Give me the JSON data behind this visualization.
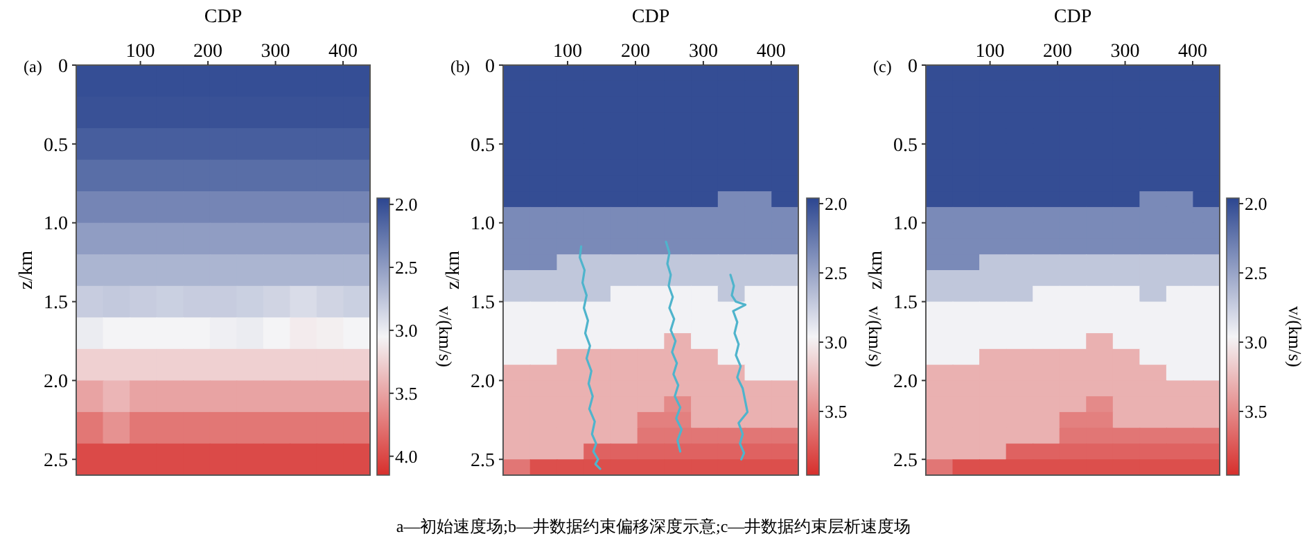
{
  "chart_data": [
    {
      "type": "heatmap",
      "xlabel": "CDP",
      "ylabel": "z/km",
      "clabel": "v/(km/s)",
      "annotations": [
        "(a)",
        "a—初始速度场;b—井数据约束偏移深度示意;c—井数据约束层析速度场"
      ],
      "x": [
        24.8,
        64.3,
        103.9,
        143.4,
        183,
        222.5,
        262,
        301.6,
        341.1,
        380.7,
        420.2
      ],
      "y": [
        0.1,
        0.3,
        0.5,
        0.7,
        0.9,
        1.1,
        1.3,
        1.5,
        1.7,
        1.9,
        2.1,
        2.3,
        2.5
      ],
      "xlim": [
        5,
        440
      ],
      "xticks": [
        100,
        200,
        300,
        400
      ],
      "ylim": [
        2.6,
        0
      ],
      "yticks": [
        {
          "value": 0,
          "label": "0"
        },
        {
          "value": 0.5,
          "label": "0.5"
        },
        {
          "value": 1,
          "label": "1.0"
        },
        {
          "value": 1.5,
          "label": "1.5"
        },
        {
          "value": 2,
          "label": "2.0"
        },
        {
          "value": 2.5,
          "label": "2.5"
        }
      ],
      "clim": [
        1.95,
        4.15
      ],
      "cticks": [
        {
          "value": 2,
          "label": "2.0"
        },
        {
          "value": 2.5,
          "label": "2.5"
        },
        {
          "value": 3,
          "label": "3.0"
        },
        {
          "value": 3.5,
          "label": "3.5"
        },
        {
          "value": 4,
          "label": "4.0"
        }
      ],
      "cells": [
        [
          2.0,
          2.0,
          2.0,
          2.0,
          2.0,
          2.0,
          2.0,
          2.0,
          2.0,
          2.0,
          2.0
        ],
        [
          2.02,
          2.02,
          2.02,
          2.02,
          2.02,
          2.02,
          2.02,
          2.02,
          2.02,
          2.02,
          2.02
        ],
        [
          2.1,
          2.1,
          2.1,
          2.1,
          2.1,
          2.1,
          2.1,
          2.1,
          2.1,
          2.1,
          2.1
        ],
        [
          2.2,
          2.2,
          2.2,
          2.2,
          2.2,
          2.2,
          2.2,
          2.2,
          2.2,
          2.2,
          2.2
        ],
        [
          2.35,
          2.35,
          2.35,
          2.35,
          2.35,
          2.35,
          2.35,
          2.35,
          2.35,
          2.35,
          2.35
        ],
        [
          2.5,
          2.5,
          2.5,
          2.5,
          2.5,
          2.5,
          2.5,
          2.5,
          2.5,
          2.5,
          2.5
        ],
        [
          2.65,
          2.65,
          2.65,
          2.65,
          2.65,
          2.65,
          2.65,
          2.65,
          2.65,
          2.65,
          2.65
        ],
        [
          2.8,
          2.78,
          2.8,
          2.82,
          2.8,
          2.8,
          2.82,
          2.85,
          2.9,
          2.85,
          2.82
        ],
        [
          3.0,
          3.05,
          3.05,
          3.05,
          3.05,
          3.02,
          3.0,
          3.05,
          3.1,
          3.08,
          3.05
        ],
        [
          3.25,
          3.25,
          3.25,
          3.25,
          3.25,
          3.25,
          3.25,
          3.25,
          3.25,
          3.25,
          3.25
        ],
        [
          3.5,
          3.4,
          3.5,
          3.5,
          3.5,
          3.5,
          3.5,
          3.5,
          3.5,
          3.5,
          3.5
        ],
        [
          3.75,
          3.6,
          3.75,
          3.75,
          3.75,
          3.75,
          3.75,
          3.75,
          3.75,
          3.75,
          3.75
        ],
        [
          4.0,
          4.0,
          4.0,
          4.0,
          4.0,
          4.0,
          4.0,
          4.0,
          4.0,
          4.0,
          4.0
        ]
      ]
    },
    {
      "type": "heatmap",
      "xlabel": "CDP",
      "ylabel": "z/km",
      "clabel": "v/(km/s)",
      "annotations": [
        "(b)"
      ],
      "x": [
        24.8,
        64.3,
        103.9,
        143.4,
        183,
        222.5,
        262,
        301.6,
        341.1,
        380.7,
        420.2
      ],
      "y": [
        0.05,
        0.15,
        0.25,
        0.35,
        0.45,
        0.55,
        0.65,
        0.75,
        0.85,
        0.95,
        1.05,
        1.15,
        1.25,
        1.35,
        1.45,
        1.55,
        1.65,
        1.75,
        1.85,
        1.95,
        2.05,
        2.15,
        2.25,
        2.35,
        2.45,
        2.55
      ],
      "xlim": [
        5,
        440
      ],
      "xticks": [
        100,
        200,
        300,
        400
      ],
      "ylim": [
        2.6,
        0
      ],
      "yticks": [
        0,
        {
          "value": 0.5,
          "label": "0.5"
        },
        {
          "value": 1,
          "label": "1.0"
        },
        {
          "value": 1.5,
          "label": "1.5"
        },
        {
          "value": 2,
          "label": "2.0"
        },
        {
          "value": 2.5,
          "label": "2.5"
        }
      ],
      "clim": [
        1.96,
        3.96
      ],
      "cticks": [
        {
          "value": 2,
          "label": "2.0"
        },
        {
          "value": 2.5,
          "label": "2.5"
        },
        {
          "value": 3,
          "label": "3.0"
        },
        {
          "value": 3.5,
          "label": "3.5"
        }
      ],
      "cells": [
        [
          2.0,
          2.0,
          2.0,
          2.0,
          2.0,
          2.0,
          2.0,
          2.0,
          2.0,
          2.0,
          2.0
        ],
        [
          2.0,
          2.0,
          2.0,
          2.0,
          2.0,
          2.0,
          2.0,
          2.0,
          2.0,
          2.0,
          2.0
        ],
        [
          2.0,
          2.0,
          2.0,
          2.0,
          2.0,
          2.0,
          2.0,
          2.0,
          2.0,
          2.0,
          2.0
        ],
        [
          2.0,
          2.0,
          2.0,
          2.0,
          2.0,
          2.0,
          2.0,
          2.0,
          2.0,
          2.0,
          2.0
        ],
        [
          2.0,
          2.0,
          2.0,
          2.0,
          2.0,
          2.0,
          2.0,
          2.0,
          2.0,
          2.0,
          2.0
        ],
        [
          2.0,
          2.0,
          2.0,
          2.0,
          2.0,
          2.0,
          2.0,
          2.0,
          2.0,
          2.0,
          2.0
        ],
        [
          2.0,
          2.0,
          2.0,
          2.0,
          2.0,
          2.0,
          2.0,
          2.0,
          2.0,
          2.0,
          2.0
        ],
        [
          2.0,
          2.0,
          2.0,
          2.0,
          2.0,
          2.0,
          2.0,
          2.0,
          2.0,
          2.0,
          2.0
        ],
        [
          2.0,
          2.0,
          2.0,
          2.0,
          2.0,
          2.0,
          2.0,
          2.0,
          2.35,
          2.35,
          2.0
        ],
        [
          2.35,
          2.35,
          2.35,
          2.35,
          2.35,
          2.35,
          2.35,
          2.35,
          2.35,
          2.35,
          2.35
        ],
        [
          2.35,
          2.35,
          2.35,
          2.35,
          2.35,
          2.35,
          2.35,
          2.35,
          2.35,
          2.35,
          2.35
        ],
        [
          2.35,
          2.35,
          2.35,
          2.35,
          2.35,
          2.35,
          2.35,
          2.35,
          2.35,
          2.35,
          2.35
        ],
        [
          2.35,
          2.35,
          2.7,
          2.7,
          2.7,
          2.7,
          2.7,
          2.7,
          2.7,
          2.7,
          2.7
        ],
        [
          2.7,
          2.7,
          2.7,
          2.7,
          2.7,
          2.7,
          2.7,
          2.7,
          2.7,
          2.7,
          2.7
        ],
        [
          2.7,
          2.7,
          2.7,
          2.7,
          2.95,
          2.95,
          2.95,
          2.95,
          2.7,
          2.95,
          2.95
        ],
        [
          2.95,
          2.95,
          2.95,
          2.95,
          2.95,
          2.95,
          2.95,
          2.95,
          2.95,
          2.95,
          2.95
        ],
        [
          2.95,
          2.95,
          2.95,
          2.95,
          2.95,
          2.95,
          2.95,
          2.95,
          2.95,
          2.95,
          2.95
        ],
        [
          2.95,
          2.95,
          2.95,
          2.95,
          2.95,
          2.95,
          3.3,
          2.95,
          2.95,
          2.95,
          2.95
        ],
        [
          2.95,
          2.95,
          3.3,
          3.3,
          3.3,
          3.3,
          3.3,
          3.3,
          2.95,
          2.95,
          2.95
        ],
        [
          3.3,
          3.3,
          3.3,
          3.3,
          3.3,
          3.3,
          3.3,
          3.3,
          3.3,
          2.95,
          2.95
        ],
        [
          3.3,
          3.3,
          3.3,
          3.3,
          3.3,
          3.3,
          3.3,
          3.3,
          3.3,
          3.3,
          3.3
        ],
        [
          3.3,
          3.3,
          3.3,
          3.3,
          3.3,
          3.3,
          3.5,
          3.3,
          3.3,
          3.3,
          3.3
        ],
        [
          3.3,
          3.3,
          3.3,
          3.3,
          3.3,
          3.55,
          3.55,
          3.3,
          3.3,
          3.3,
          3.3
        ],
        [
          3.3,
          3.3,
          3.3,
          3.3,
          3.3,
          3.6,
          3.6,
          3.6,
          3.6,
          3.6,
          3.6
        ],
        [
          3.3,
          3.3,
          3.3,
          3.7,
          3.7,
          3.7,
          3.7,
          3.7,
          3.7,
          3.7,
          3.7
        ],
        [
          3.6,
          3.8,
          3.8,
          3.8,
          3.8,
          3.8,
          3.8,
          3.8,
          3.8,
          3.8,
          3.8
        ]
      ],
      "series": [
        {
          "type": "line",
          "color": "#4fb4cc",
          "x": [
            120,
            118,
            125,
            122,
            128,
            124,
            130,
            126,
            133,
            128,
            135,
            131,
            137,
            132,
            140,
            136,
            142,
            138,
            145,
            141,
            148
          ],
          "values": [
            1.15,
            1.22,
            1.3,
            1.38,
            1.46,
            1.54,
            1.62,
            1.7,
            1.78,
            1.86,
            1.94,
            2.02,
            2.1,
            2.18,
            2.26,
            2.34,
            2.4,
            2.45,
            2.5,
            2.53,
            2.56
          ]
        },
        {
          "type": "line",
          "color": "#4fb4cc",
          "x": [
            245,
            250,
            247,
            252,
            249,
            255,
            250,
            257,
            252,
            259,
            254,
            261,
            256,
            263,
            258,
            266,
            260,
            268,
            262,
            266
          ],
          "values": [
            1.12,
            1.19,
            1.26,
            1.33,
            1.4,
            1.47,
            1.54,
            1.61,
            1.68,
            1.75,
            1.82,
            1.89,
            1.96,
            2.03,
            2.1,
            2.17,
            2.24,
            2.31,
            2.38,
            2.45
          ]
        },
        {
          "type": "line",
          "color": "#4fb4cc",
          "x": [
            340,
            345,
            342,
            348,
            362,
            344,
            350,
            346,
            352,
            348,
            355,
            350,
            358,
            365,
            352,
            358,
            354,
            360,
            356
          ],
          "values": [
            1.33,
            1.4,
            1.46,
            1.5,
            1.52,
            1.56,
            1.63,
            1.7,
            1.77,
            1.84,
            1.91,
            1.98,
            2.05,
            2.2,
            2.27,
            2.34,
            2.4,
            2.46,
            2.5
          ]
        }
      ]
    },
    {
      "type": "heatmap",
      "xlabel": "CDP",
      "ylabel": "z/km",
      "clabel": "v/(km/s)",
      "annotations": [
        "(c)"
      ],
      "x": [
        24.8,
        64.3,
        103.9,
        143.4,
        183,
        222.5,
        262,
        301.6,
        341.1,
        380.7,
        420.2
      ],
      "y": [
        0.05,
        0.15,
        0.25,
        0.35,
        0.45,
        0.55,
        0.65,
        0.75,
        0.85,
        0.95,
        1.05,
        1.15,
        1.25,
        1.35,
        1.45,
        1.55,
        1.65,
        1.75,
        1.85,
        1.95,
        2.05,
        2.15,
        2.25,
        2.35,
        2.45,
        2.55
      ],
      "xlim": [
        5,
        440
      ],
      "xticks": [
        100,
        200,
        300,
        400
      ],
      "ylim": [
        2.6,
        0
      ],
      "yticks": [
        0,
        {
          "value": 0.5,
          "label": "0.5"
        },
        {
          "value": 1,
          "label": "1.0"
        },
        {
          "value": 1.5,
          "label": "1.5"
        },
        {
          "value": 2,
          "label": "2.0"
        },
        {
          "value": 2.5,
          "label": "2.5"
        }
      ],
      "clim": [
        1.96,
        3.96
      ],
      "cticks": [
        {
          "value": 2,
          "label": "2.0"
        },
        {
          "value": 2.5,
          "label": "2.5"
        },
        {
          "value": 3,
          "label": "3.0"
        },
        {
          "value": 3.5,
          "label": "3.5"
        }
      ],
      "cells": [
        [
          2.0,
          2.0,
          2.0,
          2.0,
          2.0,
          2.0,
          2.0,
          2.0,
          2.0,
          2.0,
          2.0
        ],
        [
          2.0,
          2.0,
          2.0,
          2.0,
          2.0,
          2.0,
          2.0,
          2.0,
          2.0,
          2.0,
          2.0
        ],
        [
          2.0,
          2.0,
          2.0,
          2.0,
          2.0,
          2.0,
          2.0,
          2.0,
          2.0,
          2.0,
          2.0
        ],
        [
          2.0,
          2.0,
          2.0,
          2.0,
          2.0,
          2.0,
          2.0,
          2.0,
          2.0,
          2.0,
          2.0
        ],
        [
          2.0,
          2.0,
          2.0,
          2.0,
          2.0,
          2.0,
          2.0,
          2.0,
          2.0,
          2.0,
          2.0
        ],
        [
          2.0,
          2.0,
          2.0,
          2.0,
          2.0,
          2.0,
          2.0,
          2.0,
          2.0,
          2.0,
          2.0
        ],
        [
          2.0,
          2.0,
          2.0,
          2.0,
          2.0,
          2.0,
          2.0,
          2.0,
          2.0,
          2.0,
          2.0
        ],
        [
          2.0,
          2.0,
          2.0,
          2.0,
          2.0,
          2.0,
          2.0,
          2.0,
          2.0,
          2.0,
          2.0
        ],
        [
          2.0,
          2.0,
          2.0,
          2.0,
          2.0,
          2.0,
          2.0,
          2.0,
          2.35,
          2.35,
          2.0
        ],
        [
          2.35,
          2.35,
          2.35,
          2.35,
          2.35,
          2.35,
          2.35,
          2.35,
          2.35,
          2.35,
          2.35
        ],
        [
          2.35,
          2.35,
          2.35,
          2.35,
          2.35,
          2.35,
          2.35,
          2.35,
          2.35,
          2.35,
          2.35
        ],
        [
          2.35,
          2.35,
          2.35,
          2.35,
          2.35,
          2.35,
          2.35,
          2.35,
          2.35,
          2.35,
          2.35
        ],
        [
          2.35,
          2.35,
          2.7,
          2.7,
          2.7,
          2.7,
          2.7,
          2.7,
          2.7,
          2.7,
          2.7
        ],
        [
          2.7,
          2.7,
          2.7,
          2.7,
          2.7,
          2.7,
          2.7,
          2.7,
          2.7,
          2.7,
          2.7
        ],
        [
          2.7,
          2.7,
          2.7,
          2.7,
          2.95,
          2.95,
          2.95,
          2.95,
          2.7,
          2.95,
          2.95
        ],
        [
          2.95,
          2.95,
          2.95,
          2.95,
          2.95,
          2.95,
          2.95,
          2.95,
          2.95,
          2.95,
          2.95
        ],
        [
          2.95,
          2.95,
          2.95,
          2.95,
          2.95,
          2.95,
          2.95,
          2.95,
          2.95,
          2.95,
          2.95
        ],
        [
          2.95,
          2.95,
          2.95,
          2.95,
          2.95,
          2.95,
          3.3,
          2.95,
          2.95,
          2.95,
          2.95
        ],
        [
          2.95,
          2.95,
          3.3,
          3.3,
          3.3,
          3.3,
          3.3,
          3.3,
          2.95,
          2.95,
          2.95
        ],
        [
          3.3,
          3.3,
          3.3,
          3.3,
          3.3,
          3.3,
          3.3,
          3.3,
          3.3,
          2.95,
          2.95
        ],
        [
          3.3,
          3.3,
          3.3,
          3.3,
          3.3,
          3.3,
          3.3,
          3.3,
          3.3,
          3.3,
          3.3
        ],
        [
          3.3,
          3.3,
          3.3,
          3.3,
          3.3,
          3.3,
          3.5,
          3.3,
          3.3,
          3.3,
          3.3
        ],
        [
          3.3,
          3.3,
          3.3,
          3.3,
          3.3,
          3.55,
          3.55,
          3.3,
          3.3,
          3.3,
          3.3
        ],
        [
          3.3,
          3.3,
          3.3,
          3.3,
          3.3,
          3.6,
          3.6,
          3.6,
          3.6,
          3.6,
          3.6
        ],
        [
          3.3,
          3.3,
          3.3,
          3.7,
          3.7,
          3.7,
          3.7,
          3.7,
          3.7,
          3.7,
          3.7
        ],
        [
          3.6,
          3.8,
          3.8,
          3.8,
          3.8,
          3.8,
          3.8,
          3.8,
          3.8,
          3.8,
          3.8
        ]
      ]
    }
  ]
}
